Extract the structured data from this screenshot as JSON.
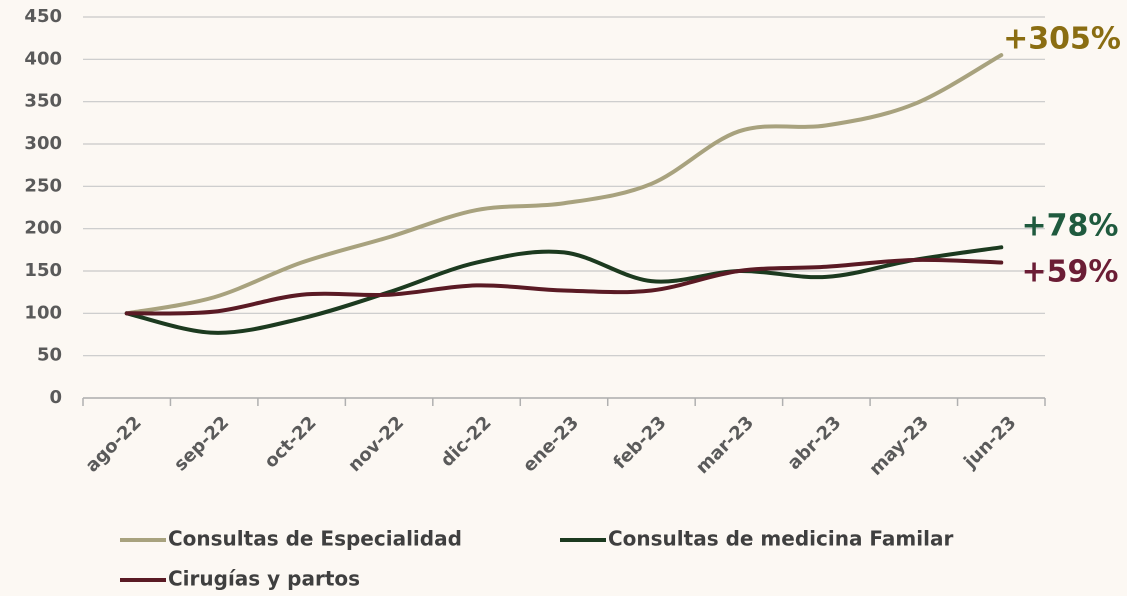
{
  "chart_data": {
    "type": "line",
    "categories": [
      "ago-22",
      "sep-22",
      "oct-22",
      "nov-22",
      "dic-22",
      "ene-23",
      "feb-23",
      "mar-23",
      "abr-23",
      "may-23",
      "jun-23"
    ],
    "series": [
      {
        "name": "Consultas de Especialidad",
        "color": "#a8a27e",
        "values": [
          100,
          119,
          160,
          190,
          222,
          230,
          253,
          315,
          322,
          347,
          405
        ]
      },
      {
        "name": "Consultas de medicina Familar",
        "color": "#1c3a1f",
        "values": [
          100,
          77,
          94,
          125,
          160,
          172,
          138,
          150,
          143,
          163,
          178
        ]
      },
      {
        "name": "Cirugías y partos",
        "color": "#5a1a24",
        "values": [
          100,
          102,
          122,
          122,
          133,
          127,
          127,
          150,
          155,
          163,
          160
        ]
      }
    ],
    "annotations": [
      {
        "text": "+305%",
        "color": "#8a6d12"
      },
      {
        "text": "+78%",
        "color": "#1f5a3e"
      },
      {
        "text": "+59%",
        "color": "#6b1d35"
      }
    ],
    "ylim": [
      0,
      450
    ],
    "yticks": [
      0,
      50,
      100,
      150,
      200,
      250,
      300,
      350,
      400,
      450
    ],
    "grid": true
  }
}
